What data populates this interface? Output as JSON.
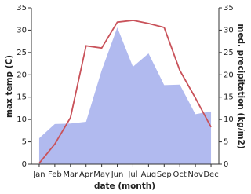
{
  "chart_data": {
    "type": "line-area",
    "categories": [
      "Jan",
      "Feb",
      "Mar",
      "Apr",
      "May",
      "Jun",
      "Jul",
      "Aug",
      "Sep",
      "Oct",
      "Nov",
      "Dec"
    ],
    "x_label": "date (month)",
    "y_label": "max temp (C)",
    "y2_label": "med. precipitation (kg/m2)",
    "series": [
      {
        "name": "med. precipitation",
        "type": "area",
        "axis": "y2",
        "color": "#b1baef",
        "values": [
          5.8,
          9,
          9.1,
          9.5,
          21,
          30.6,
          21.8,
          24.8,
          17.7,
          17.8,
          11.2,
          11.8
        ]
      },
      {
        "name": "max temp",
        "type": "line",
        "color": "#c9525a",
        "values": [
          0.2,
          4.5,
          10.4,
          26.5,
          26,
          31.8,
          32.2,
          31.5,
          30.6,
          21,
          14.8,
          8.3
        ]
      }
    ],
    "ylim": [
      0,
      35
    ],
    "yticks": [
      0,
      5,
      10,
      15,
      20,
      25,
      30,
      35
    ],
    "y2lim": [
      0,
      35
    ],
    "y2ticks": [
      0,
      5,
      10,
      15,
      20,
      25,
      30,
      35
    ]
  }
}
